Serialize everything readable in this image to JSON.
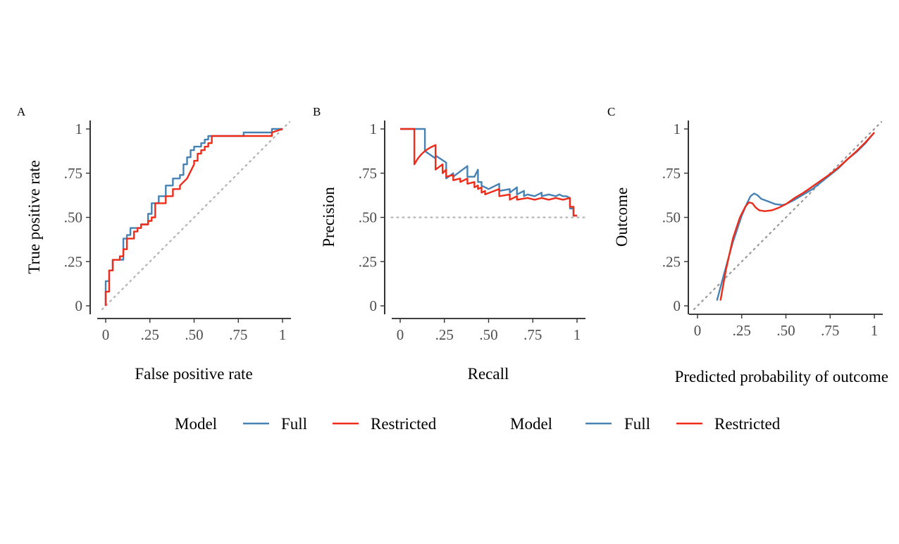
{
  "legends": [
    {
      "title": "Model",
      "items": [
        {
          "label": "Full",
          "color": "#4682b4"
        },
        {
          "label": "Restricted",
          "color": "#ee2c1a"
        }
      ]
    },
    {
      "title": "Model",
      "items": [
        {
          "label": "Full",
          "color": "#4682b4"
        },
        {
          "label": "Restricted",
          "color": "#ee2c1a"
        }
      ]
    }
  ],
  "chart_data": [
    {
      "panel": "A",
      "type": "line",
      "xlabel": "False positive rate",
      "ylabel": "True positive rate",
      "xlim": [
        0,
        1
      ],
      "ylim": [
        0,
        1
      ],
      "xticks": [
        "0",
        ".25",
        ".50",
        ".75",
        "1"
      ],
      "yticks": [
        "0",
        ".25",
        ".50",
        ".75",
        "1"
      ],
      "grid": false,
      "reference": {
        "points": [
          [
            -0.02,
            -0.02
          ],
          [
            1.04,
            1.04
          ]
        ],
        "color": "#b3b3b3"
      },
      "series": [
        {
          "name": "Full",
          "color": "#4682b4",
          "step": true,
          "x": [
            0,
            0,
            0.02,
            0.02,
            0.04,
            0.04,
            0.06,
            0.06,
            0.1,
            0.1,
            0.12,
            0.12,
            0.14,
            0.14,
            0.18,
            0.18,
            0.2,
            0.2,
            0.22,
            0.22,
            0.24,
            0.24,
            0.26,
            0.26,
            0.3,
            0.3,
            0.34,
            0.34,
            0.38,
            0.38,
            0.42,
            0.42,
            0.44,
            0.44,
            0.46,
            0.46,
            0.48,
            0.48,
            0.5,
            0.5,
            0.54,
            0.54,
            0.56,
            0.56,
            0.58,
            0.58,
            0.62,
            0.62,
            0.78,
            0.78,
            0.8,
            0.8,
            0.94,
            0.94,
            1
          ],
          "y": [
            0,
            0.14,
            0.14,
            0.2,
            0.2,
            0.26,
            0.26,
            0.26,
            0.26,
            0.38,
            0.38,
            0.4,
            0.4,
            0.44,
            0.44,
            0.44,
            0.44,
            0.46,
            0.46,
            0.46,
            0.46,
            0.52,
            0.52,
            0.58,
            0.58,
            0.62,
            0.62,
            0.68,
            0.68,
            0.72,
            0.72,
            0.74,
            0.74,
            0.8,
            0.8,
            0.84,
            0.84,
            0.88,
            0.88,
            0.9,
            0.9,
            0.92,
            0.92,
            0.94,
            0.94,
            0.96,
            0.96,
            0.96,
            0.96,
            0.98,
            0.98,
            0.98,
            0.98,
            1,
            1
          ]
        },
        {
          "name": "Restricted",
          "color": "#ee2c1a",
          "step": true,
          "x": [
            0,
            0,
            0.02,
            0.02,
            0.04,
            0.04,
            0.08,
            0.08,
            0.1,
            0.1,
            0.12,
            0.12,
            0.16,
            0.16,
            0.18,
            0.18,
            0.2,
            0.2,
            0.24,
            0.24,
            0.26,
            0.26,
            0.28,
            0.28,
            0.34,
            0.34,
            0.38,
            0.38,
            0.42,
            0.42,
            0.44,
            0.46,
            0.48,
            0.5,
            0.5,
            0.52,
            0.52,
            0.54,
            0.54,
            0.56,
            0.56,
            0.58,
            0.58,
            0.6,
            0.6,
            0.94,
            0.94,
            1
          ],
          "y": [
            0,
            0.08,
            0.08,
            0.2,
            0.2,
            0.26,
            0.26,
            0.28,
            0.28,
            0.32,
            0.32,
            0.38,
            0.38,
            0.42,
            0.42,
            0.44,
            0.44,
            0.46,
            0.46,
            0.48,
            0.48,
            0.5,
            0.5,
            0.58,
            0.58,
            0.62,
            0.62,
            0.66,
            0.66,
            0.68,
            0.7,
            0.72,
            0.76,
            0.8,
            0.82,
            0.82,
            0.86,
            0.86,
            0.88,
            0.88,
            0.9,
            0.9,
            0.92,
            0.92,
            0.96,
            0.96,
            0.98,
            1
          ]
        }
      ]
    },
    {
      "panel": "B",
      "type": "line",
      "xlabel": "Recall",
      "ylabel": "Precision",
      "xlim": [
        0,
        1
      ],
      "ylim": [
        0,
        1
      ],
      "xticks": [
        "0",
        ".25",
        ".50",
        ".75",
        "1"
      ],
      "yticks": [
        "0",
        ".25",
        ".50",
        ".75",
        "1"
      ],
      "grid": false,
      "reference": {
        "points": [
          [
            -0.05,
            0.5
          ],
          [
            1.05,
            0.5
          ]
        ],
        "color": "#b3b3b3"
      },
      "series": [
        {
          "name": "Full",
          "color": "#4682b4",
          "step": false,
          "x": [
            0,
            0.14,
            0.14,
            0.2,
            0.2,
            0.26,
            0.26,
            0.26,
            0.3,
            0.3,
            0.34,
            0.38,
            0.38,
            0.42,
            0.44,
            0.44,
            0.46,
            0.46,
            0.48,
            0.5,
            0.52,
            0.56,
            0.56,
            0.62,
            0.62,
            0.66,
            0.66,
            0.7,
            0.7,
            0.72,
            0.76,
            0.8,
            0.8,
            0.84,
            0.88,
            0.9,
            0.92,
            0.94,
            0.96,
            0.96,
            0.98,
            0.98,
            1
          ],
          "y": [
            1,
            1,
            0.875,
            0.833,
            0.85,
            0.81,
            0.78,
            0.72,
            0.75,
            0.73,
            0.76,
            0.79,
            0.73,
            0.73,
            0.77,
            0.7,
            0.7,
            0.68,
            0.67,
            0.66,
            0.67,
            0.69,
            0.65,
            0.66,
            0.64,
            0.67,
            0.63,
            0.65,
            0.62,
            0.63,
            0.62,
            0.64,
            0.62,
            0.63,
            0.62,
            0.63,
            0.62,
            0.62,
            0.61,
            0.55,
            0.55,
            0.51,
            0.51
          ]
        },
        {
          "name": "Restricted",
          "color": "#ee2c1a",
          "step": false,
          "x": [
            0,
            0.08,
            0.08,
            0.1,
            0.12,
            0.14,
            0.16,
            0.18,
            0.2,
            0.2,
            0.24,
            0.24,
            0.26,
            0.26,
            0.3,
            0.3,
            0.34,
            0.34,
            0.38,
            0.38,
            0.42,
            0.42,
            0.44,
            0.44,
            0.46,
            0.46,
            0.48,
            0.48,
            0.56,
            0.56,
            0.62,
            0.62,
            0.66,
            0.66,
            0.72,
            0.76,
            0.8,
            0.84,
            0.88,
            0.92,
            0.96,
            0.96,
            0.98,
            0.98,
            1
          ],
          "y": [
            1,
            1,
            0.8,
            0.833,
            0.857,
            0.875,
            0.889,
            0.9,
            0.909,
            0.77,
            0.8,
            0.75,
            0.77,
            0.73,
            0.74,
            0.71,
            0.72,
            0.7,
            0.72,
            0.69,
            0.7,
            0.67,
            0.68,
            0.66,
            0.67,
            0.64,
            0.65,
            0.63,
            0.66,
            0.62,
            0.63,
            0.6,
            0.62,
            0.6,
            0.61,
            0.6,
            0.61,
            0.6,
            0.61,
            0.6,
            0.61,
            0.56,
            0.56,
            0.51,
            0.51
          ]
        }
      ]
    },
    {
      "panel": "C",
      "type": "line",
      "xlabel": "Predicted probability of outcome",
      "ylabel": "Outcome",
      "xlim": [
        0,
        1
      ],
      "ylim": [
        0,
        1
      ],
      "xticks": [
        "0",
        ".25",
        ".50",
        ".75",
        "1"
      ],
      "yticks": [
        "0",
        ".25",
        ".50",
        ".75",
        "1"
      ],
      "grid": false,
      "reference": {
        "points": [
          [
            -0.02,
            -0.02
          ],
          [
            1.04,
            1.04
          ]
        ],
        "color": "#999999"
      },
      "series": [
        {
          "name": "Full",
          "color": "#4682b4",
          "step": false,
          "x": [
            0.11,
            0.15,
            0.2,
            0.25,
            0.28,
            0.3,
            0.32,
            0.34,
            0.36,
            0.4,
            0.44,
            0.48,
            0.5,
            0.55,
            0.6,
            0.65,
            0.7,
            0.75,
            0.8,
            0.85,
            0.9,
            0.95,
            1.0
          ],
          "y": [
            0.03,
            0.18,
            0.36,
            0.51,
            0.58,
            0.62,
            0.635,
            0.625,
            0.605,
            0.59,
            0.575,
            0.57,
            0.575,
            0.6,
            0.63,
            0.66,
            0.7,
            0.74,
            0.78,
            0.83,
            0.87,
            0.92,
            0.98
          ]
        },
        {
          "name": "Restricted",
          "color": "#ee2c1a",
          "step": false,
          "x": [
            0.13,
            0.16,
            0.2,
            0.24,
            0.27,
            0.29,
            0.31,
            0.33,
            0.35,
            0.38,
            0.42,
            0.46,
            0.5,
            0.55,
            0.6,
            0.65,
            0.7,
            0.75,
            0.8,
            0.85,
            0.9,
            0.95,
            1.0
          ],
          "y": [
            0.03,
            0.2,
            0.38,
            0.5,
            0.56,
            0.585,
            0.58,
            0.555,
            0.54,
            0.535,
            0.54,
            0.555,
            0.575,
            0.61,
            0.64,
            0.675,
            0.71,
            0.745,
            0.785,
            0.83,
            0.875,
            0.925,
            0.98
          ]
        }
      ]
    }
  ]
}
